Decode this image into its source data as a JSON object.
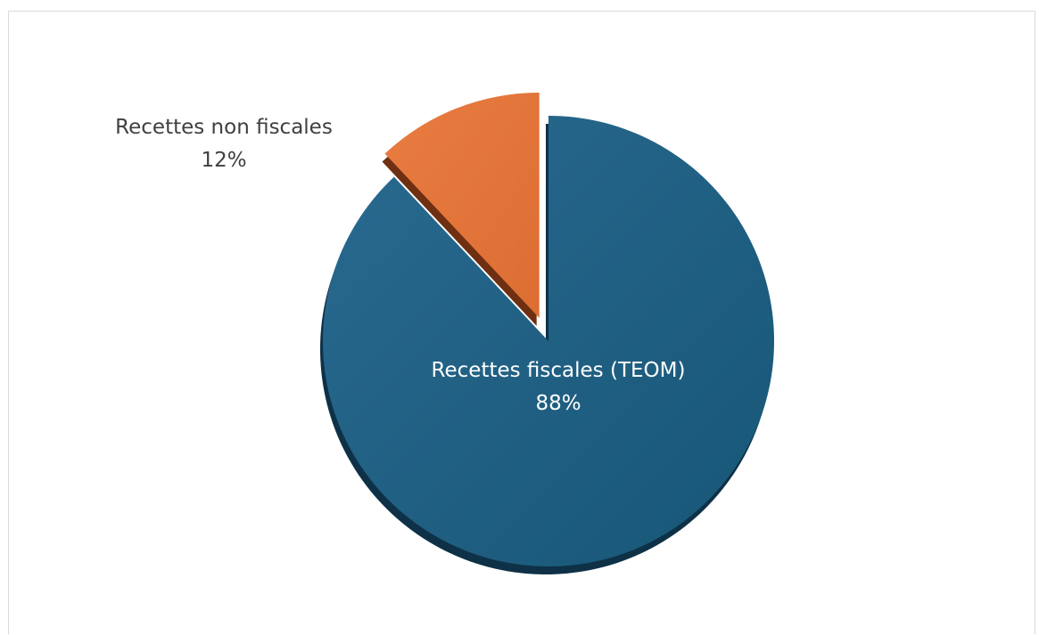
{
  "chart_data": {
    "type": "pie",
    "title": "",
    "slices": [
      {
        "label": "Recettes fiscales (TEOM)",
        "value": 88,
        "value_label": "88%",
        "color": "#1F5F82",
        "exploded": false,
        "label_color": "#FFFFFF"
      },
      {
        "label": "Recettes non fiscales",
        "value": 12,
        "value_label": "12%",
        "color": "#E2743A",
        "exploded": true,
        "label_color": "#404040"
      }
    ],
    "style": "3d-exploded"
  }
}
